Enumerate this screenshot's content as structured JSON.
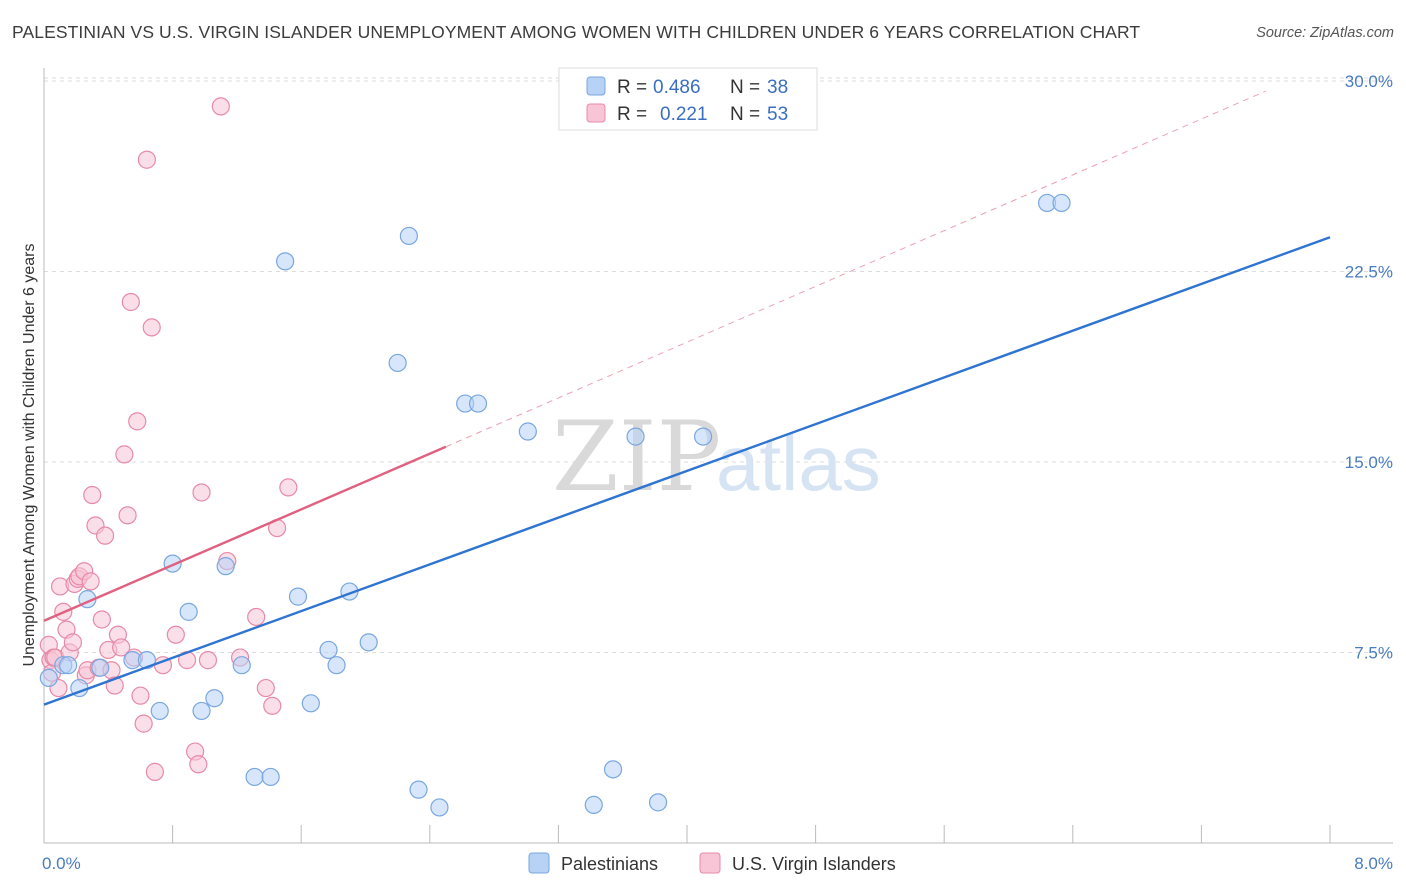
{
  "title": "PALESTINIAN VS U.S. VIRGIN ISLANDER UNEMPLOYMENT AMONG WOMEN WITH CHILDREN UNDER 6 YEARS CORRELATION CHART",
  "source": "Source: ZipAtlas.com",
  "watermark": {
    "zip": "ZIP",
    "atlas": "atlas"
  },
  "legend_top": [
    {
      "r_label": "R =",
      "r_value": "0.486",
      "n_label": "N =",
      "n_value": "38"
    },
    {
      "r_label": "R =",
      "r_value": "0.221",
      "n_label": "N =",
      "n_value": "53"
    }
  ],
  "legend_bottom": [
    "Palestinians",
    "U.S. Virgin Islanders"
  ],
  "colors": {
    "blue_fill": "#b7d2f5",
    "blue_stroke": "#7aa7e0",
    "blue_line": "#2e74d0",
    "pink_fill": "#f8c5d6",
    "pink_stroke": "#e78aa8",
    "pink_line": "#e0607f",
    "grid": "#dcdcdc",
    "tick": "#4a7cc0"
  },
  "chart_data": {
    "type": "scatter",
    "xlabel": "",
    "ylabel": "Unemployment Among Women with Children Under 6 years",
    "xlim": [
      0,
      8.0
    ],
    "ylim": [
      0,
      31.0
    ],
    "x_tick_labels": [
      "0.0%",
      "8.0%"
    ],
    "y_ticks": [
      7.5,
      15.0,
      22.5,
      30.0
    ],
    "y_tick_labels": [
      "7.5%",
      "15.0%",
      "22.5%",
      "30.0%"
    ],
    "series": [
      {
        "name": "Palestinians",
        "R": 0.486,
        "N": 38,
        "points": [
          [
            0.03,
            6.5
          ],
          [
            0.12,
            7.0
          ],
          [
            0.15,
            7.0
          ],
          [
            0.22,
            6.1
          ],
          [
            0.27,
            9.6
          ],
          [
            0.35,
            6.9
          ],
          [
            0.55,
            7.2
          ],
          [
            0.64,
            7.2
          ],
          [
            0.72,
            5.2
          ],
          [
            0.8,
            11.0
          ],
          [
            0.9,
            9.1
          ],
          [
            0.98,
            5.2
          ],
          [
            1.06,
            5.7
          ],
          [
            1.13,
            10.9
          ],
          [
            1.23,
            7.0
          ],
          [
            1.31,
            2.6
          ],
          [
            1.41,
            2.6
          ],
          [
            1.5,
            22.9
          ],
          [
            1.58,
            9.7
          ],
          [
            1.66,
            5.5
          ],
          [
            1.77,
            7.6
          ],
          [
            1.82,
            7.0
          ],
          [
            1.9,
            9.9
          ],
          [
            2.02,
            7.9
          ],
          [
            2.2,
            18.9
          ],
          [
            2.27,
            23.9
          ],
          [
            2.33,
            2.1
          ],
          [
            2.46,
            1.4
          ],
          [
            2.62,
            17.3
          ],
          [
            2.7,
            17.3
          ],
          [
            3.01,
            16.2
          ],
          [
            3.42,
            1.5
          ],
          [
            3.54,
            2.9
          ],
          [
            3.68,
            16.0
          ],
          [
            3.82,
            1.6
          ],
          [
            4.1,
            16.0
          ],
          [
            6.24,
            25.2
          ],
          [
            6.33,
            25.2
          ]
        ]
      },
      {
        "name": "U.S. Virgin Islanders",
        "R": 0.221,
        "N": 53,
        "points": [
          [
            0.03,
            7.8
          ],
          [
            0.04,
            7.2
          ],
          [
            0.05,
            6.7
          ],
          [
            0.06,
            7.3
          ],
          [
            0.07,
            7.3
          ],
          [
            0.09,
            6.1
          ],
          [
            0.1,
            10.1
          ],
          [
            0.12,
            9.1
          ],
          [
            0.14,
            8.4
          ],
          [
            0.16,
            7.5
          ],
          [
            0.18,
            7.9
          ],
          [
            0.19,
            10.2
          ],
          [
            0.21,
            10.4
          ],
          [
            0.22,
            10.5
          ],
          [
            0.25,
            10.7
          ],
          [
            0.26,
            6.6
          ],
          [
            0.27,
            6.8
          ],
          [
            0.29,
            10.3
          ],
          [
            0.3,
            13.7
          ],
          [
            0.32,
            12.5
          ],
          [
            0.34,
            6.9
          ],
          [
            0.36,
            8.8
          ],
          [
            0.38,
            12.1
          ],
          [
            0.4,
            7.6
          ],
          [
            0.42,
            6.8
          ],
          [
            0.44,
            6.2
          ],
          [
            0.46,
            8.2
          ],
          [
            0.48,
            7.7
          ],
          [
            0.5,
            15.3
          ],
          [
            0.52,
            12.9
          ],
          [
            0.54,
            21.3
          ],
          [
            0.56,
            7.3
          ],
          [
            0.58,
            16.6
          ],
          [
            0.6,
            5.8
          ],
          [
            0.62,
            4.7
          ],
          [
            0.64,
            26.9
          ],
          [
            0.67,
            20.3
          ],
          [
            0.69,
            2.8
          ],
          [
            0.74,
            7.0
          ],
          [
            0.82,
            8.2
          ],
          [
            0.89,
            7.2
          ],
          [
            0.94,
            3.6
          ],
          [
            0.96,
            3.1
          ],
          [
            0.98,
            13.8
          ],
          [
            1.02,
            7.2
          ],
          [
            1.1,
            29.0
          ],
          [
            1.14,
            11.1
          ],
          [
            1.22,
            7.3
          ],
          [
            1.32,
            8.9
          ],
          [
            1.38,
            6.1
          ],
          [
            1.42,
            5.4
          ],
          [
            1.45,
            12.4
          ],
          [
            1.52,
            14.0
          ]
        ]
      }
    ],
    "trend_lines": [
      {
        "series": "Palestinians",
        "x": [
          0.0,
          8.0
        ],
        "y": [
          5.45,
          23.85
        ],
        "style": "solid"
      },
      {
        "series": "U.S. Virgin Islanders",
        "x": [
          0.0,
          2.5
        ],
        "y": [
          8.75,
          15.6
        ],
        "style": "solid"
      },
      {
        "series": "U.S. Virgin Islanders",
        "x": [
          2.5,
          7.6
        ],
        "y": [
          15.6,
          29.6
        ],
        "style": "dashed"
      }
    ]
  }
}
